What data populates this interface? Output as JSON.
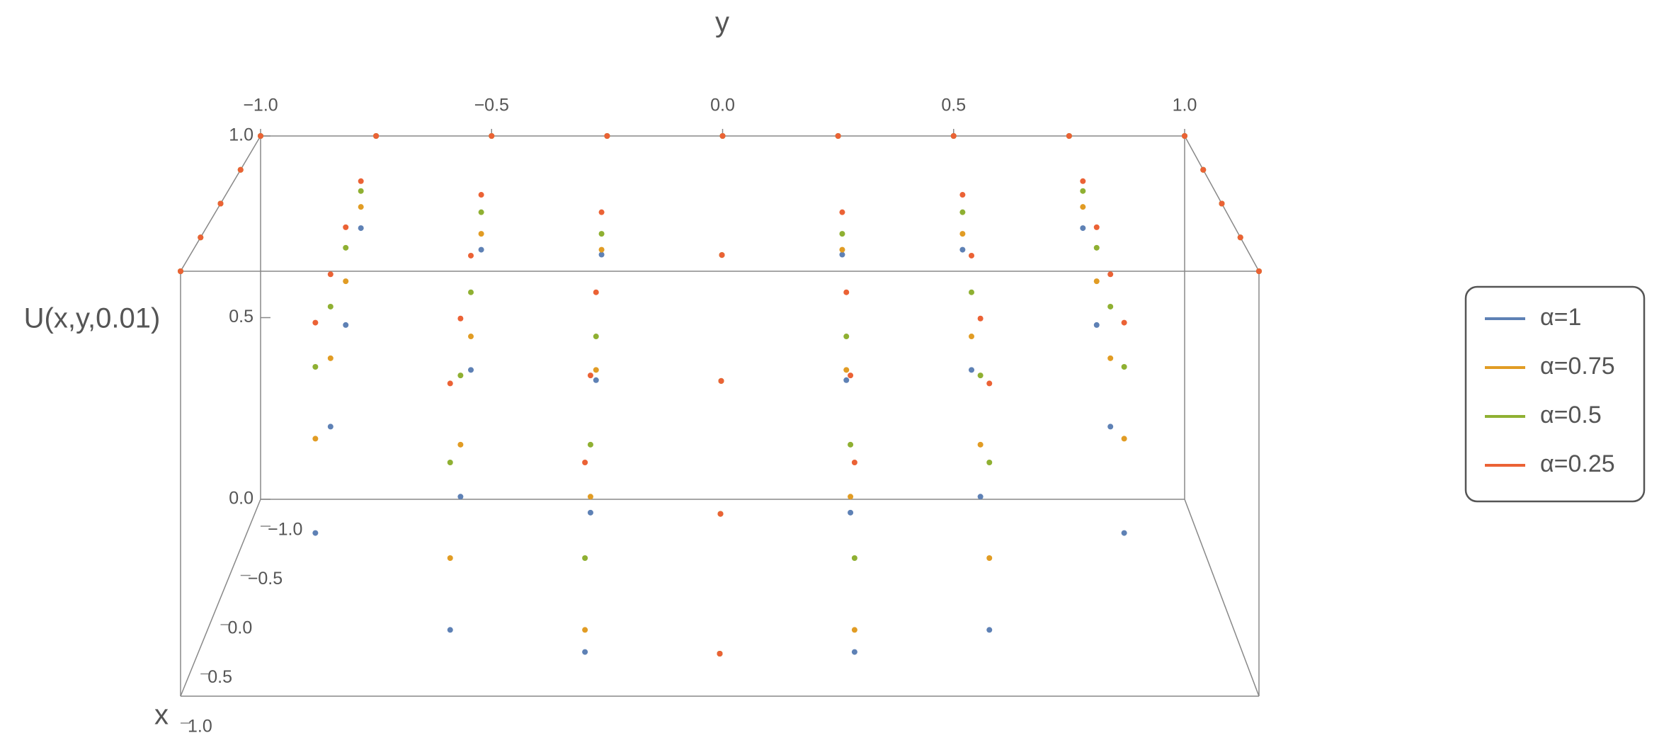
{
  "chart_data": {
    "type": "scatter3d",
    "xlabel": "x",
    "ylabel": "y",
    "zlabel": "U(x,y,0.01)",
    "xlim": [
      -1,
      1
    ],
    "ylim": [
      -1,
      1
    ],
    "zlim": [
      0,
      1
    ],
    "xticks": [
      {
        "value": -1,
        "label": "−1.0"
      },
      {
        "value": -0.5,
        "label": "−0.5"
      },
      {
        "value": 0,
        "label": "0.0"
      },
      {
        "value": 0.5,
        "label": "0.5"
      },
      {
        "value": 1,
        "label": "1.0"
      }
    ],
    "yticks": [
      {
        "value": -1,
        "label": "−1.0"
      },
      {
        "value": -0.5,
        "label": "−0.5"
      },
      {
        "value": 0,
        "label": "0.0"
      },
      {
        "value": 0.5,
        "label": "0.5"
      },
      {
        "value": 1,
        "label": "1.0"
      }
    ],
    "zticks": [
      {
        "value": 0,
        "label": "0.0"
      },
      {
        "value": 0.5,
        "label": "0.5"
      },
      {
        "value": 1,
        "label": "1.0"
      }
    ],
    "legend": "right",
    "x": [
      -1,
      -0.5,
      0,
      0.5,
      1,
      -1,
      -0.5,
      0,
      0.5,
      1,
      -1,
      -0.5,
      0,
      0.5,
      1,
      -1,
      -0.5,
      0,
      0.5,
      1,
      -1,
      -0.5,
      0,
      0.5,
      1,
      -1,
      -0.5,
      0,
      0.5,
      1,
      -1,
      -0.5,
      0,
      0.5,
      1,
      -1,
      -0.5,
      0,
      0.5,
      1,
      -1,
      -0.5,
      0,
      0.5,
      1
    ],
    "y": [
      -1,
      -1,
      -1,
      -1,
      -1,
      -0.75,
      -0.75,
      -0.75,
      -0.75,
      -0.75,
      -0.5,
      -0.5,
      -0.5,
      -0.5,
      -0.5,
      -0.25,
      -0.25,
      -0.25,
      -0.25,
      -0.25,
      0,
      0,
      0,
      0,
      0,
      0.25,
      0.25,
      0.25,
      0.25,
      0.25,
      0.5,
      0.5,
      0.5,
      0.5,
      0.5,
      0.75,
      0.75,
      0.75,
      0.75,
      0.75,
      1,
      1,
      1,
      1,
      1
    ],
    "series": [
      {
        "name": "α=1",
        "color": "#5e81b5",
        "values": [
          1,
          1,
          1,
          1,
          1,
          1,
          0.846,
          0.692,
          0.538,
          0.384,
          1,
          0.789,
          0.578,
          0.367,
          0.156,
          1,
          0.776,
          0.552,
          0.328,
          0.104,
          1,
          0.775,
          0.55,
          0.325,
          0.1,
          1,
          0.776,
          0.552,
          0.328,
          0.104,
          1,
          0.789,
          0.578,
          0.367,
          0.156,
          1,
          0.846,
          0.692,
          0.538,
          0.384,
          1,
          1,
          1,
          1,
          1
        ]
      },
      {
        "name": "α=0.75",
        "color": "#e19c24",
        "values": [
          1,
          1,
          1,
          1,
          1,
          1,
          0.902,
          0.803,
          0.705,
          0.606,
          1,
          0.831,
          0.663,
          0.494,
          0.325,
          1,
          0.789,
          0.578,
          0.367,
          0.156,
          1,
          0.775,
          0.55,
          0.325,
          0.1,
          1,
          0.789,
          0.578,
          0.367,
          0.156,
          1,
          0.831,
          0.663,
          0.494,
          0.325,
          1,
          0.902,
          0.803,
          0.705,
          0.606,
          1,
          1,
          1,
          1,
          1
        ]
      },
      {
        "name": "α=0.5",
        "color": "#8fb032",
        "values": [
          1,
          1,
          1,
          1,
          1,
          1,
          0.944,
          0.888,
          0.831,
          0.775,
          1,
          0.888,
          0.775,
          0.663,
          0.55,
          1,
          0.831,
          0.663,
          0.494,
          0.325,
          1,
          0.775,
          0.55,
          0.325,
          0.1,
          1,
          0.831,
          0.663,
          0.494,
          0.325,
          1,
          0.888,
          0.775,
          0.663,
          0.55,
          1,
          0.944,
          0.888,
          0.831,
          0.775,
          1,
          1,
          1,
          1,
          1
        ]
      },
      {
        "name": "α=0.25",
        "color": "#eb6235",
        "values": [
          1,
          1,
          1,
          1,
          1,
          1,
          0.97,
          0.94,
          0.91,
          0.879,
          1,
          0.934,
          0.868,
          0.802,
          0.736,
          1,
          0.888,
          0.775,
          0.663,
          0.55,
          1,
          0.775,
          0.55,
          0.325,
          0.1,
          1,
          0.888,
          0.775,
          0.663,
          0.55,
          1,
          0.934,
          0.868,
          0.802,
          0.736,
          1,
          0.97,
          0.94,
          0.91,
          0.879,
          1,
          1,
          1,
          1,
          1
        ]
      }
    ]
  }
}
